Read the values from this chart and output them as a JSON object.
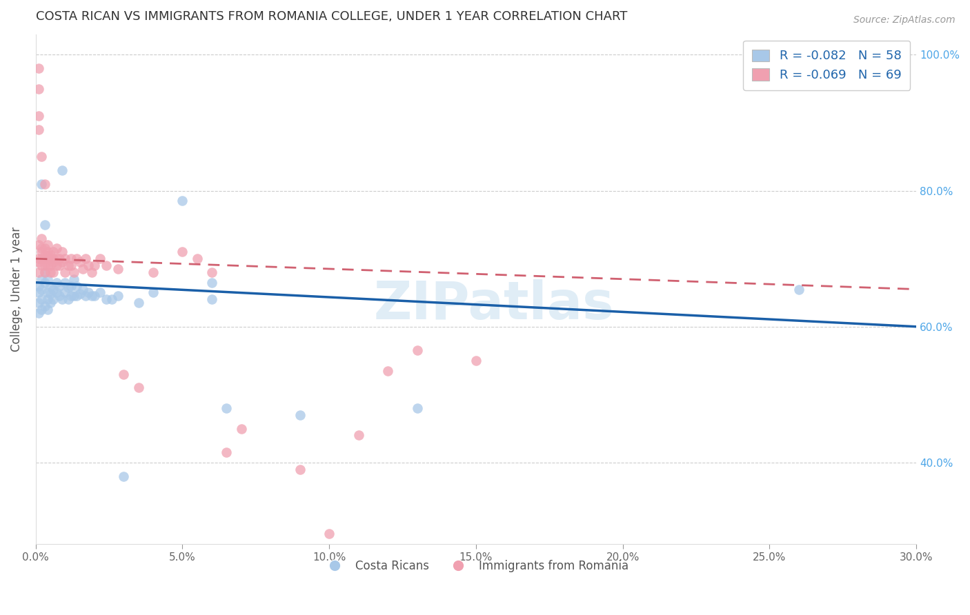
{
  "title": "COSTA RICAN VS IMMIGRANTS FROM ROMANIA COLLEGE, UNDER 1 YEAR CORRELATION CHART",
  "source": "Source: ZipAtlas.com",
  "ylabel": "College, Under 1 year",
  "x_min": 0.0,
  "x_max": 0.3,
  "y_min": 0.28,
  "y_max": 1.03,
  "x_ticks": [
    0.0,
    0.05,
    0.1,
    0.15,
    0.2,
    0.25,
    0.3
  ],
  "x_tick_labels": [
    "0.0%",
    "5.0%",
    "10.0%",
    "15.0%",
    "20.0%",
    "25.0%",
    "30.0%"
  ],
  "y_ticks": [
    0.4,
    0.6,
    0.8,
    1.0
  ],
  "y_tick_labels": [
    "40.0%",
    "60.0%",
    "80.0%",
    "100.0%"
  ],
  "blue_color": "#a8c8e8",
  "pink_color": "#f0a0b0",
  "blue_line_color": "#1a5fa8",
  "pink_line_color": "#d06070",
  "legend_r_blue": "-0.082",
  "legend_n_blue": "58",
  "legend_r_pink": "-0.069",
  "legend_n_pink": "69",
  "label_blue": "Costa Ricans",
  "label_pink": "Immigrants from Romania",
  "watermark": "ZIPatlas",
  "blue_points": [
    [
      0.001,
      0.635
    ],
    [
      0.001,
      0.65
    ],
    [
      0.001,
      0.62
    ],
    [
      0.001,
      0.66
    ],
    [
      0.002,
      0.64
    ],
    [
      0.002,
      0.67
    ],
    [
      0.002,
      0.625
    ],
    [
      0.002,
      0.655
    ],
    [
      0.002,
      0.81
    ],
    [
      0.003,
      0.63
    ],
    [
      0.003,
      0.665
    ],
    [
      0.003,
      0.68
    ],
    [
      0.003,
      0.75
    ],
    [
      0.004,
      0.625
    ],
    [
      0.004,
      0.65
    ],
    [
      0.004,
      0.67
    ],
    [
      0.004,
      0.64
    ],
    [
      0.005,
      0.635
    ],
    [
      0.005,
      0.66
    ],
    [
      0.005,
      0.648
    ],
    [
      0.006,
      0.64
    ],
    [
      0.006,
      0.655
    ],
    [
      0.007,
      0.65
    ],
    [
      0.007,
      0.665
    ],
    [
      0.008,
      0.645
    ],
    [
      0.008,
      0.66
    ],
    [
      0.009,
      0.64
    ],
    [
      0.009,
      0.83
    ],
    [
      0.01,
      0.65
    ],
    [
      0.01,
      0.665
    ],
    [
      0.011,
      0.64
    ],
    [
      0.011,
      0.658
    ],
    [
      0.012,
      0.645
    ],
    [
      0.012,
      0.66
    ],
    [
      0.013,
      0.645
    ],
    [
      0.013,
      0.67
    ],
    [
      0.014,
      0.645
    ],
    [
      0.014,
      0.66
    ],
    [
      0.015,
      0.648
    ],
    [
      0.016,
      0.655
    ],
    [
      0.017,
      0.645
    ],
    [
      0.018,
      0.65
    ],
    [
      0.019,
      0.645
    ],
    [
      0.02,
      0.645
    ],
    [
      0.022,
      0.65
    ],
    [
      0.024,
      0.64
    ],
    [
      0.026,
      0.64
    ],
    [
      0.028,
      0.645
    ],
    [
      0.03,
      0.38
    ],
    [
      0.035,
      0.635
    ],
    [
      0.04,
      0.65
    ],
    [
      0.05,
      0.785
    ],
    [
      0.06,
      0.665
    ],
    [
      0.06,
      0.64
    ],
    [
      0.065,
      0.48
    ],
    [
      0.09,
      0.47
    ],
    [
      0.13,
      0.48
    ],
    [
      0.26,
      0.655
    ]
  ],
  "pink_points": [
    [
      0.001,
      0.695
    ],
    [
      0.001,
      0.72
    ],
    [
      0.001,
      0.7
    ],
    [
      0.001,
      0.68
    ],
    [
      0.001,
      0.95
    ],
    [
      0.001,
      0.98
    ],
    [
      0.001,
      0.91
    ],
    [
      0.001,
      0.89
    ],
    [
      0.002,
      0.69
    ],
    [
      0.002,
      0.715
    ],
    [
      0.002,
      0.73
    ],
    [
      0.002,
      0.7
    ],
    [
      0.002,
      0.85
    ],
    [
      0.002,
      0.71
    ],
    [
      0.003,
      0.69
    ],
    [
      0.003,
      0.715
    ],
    [
      0.003,
      0.7
    ],
    [
      0.003,
      0.68
    ],
    [
      0.003,
      0.705
    ],
    [
      0.003,
      0.81
    ],
    [
      0.004,
      0.69
    ],
    [
      0.004,
      0.71
    ],
    [
      0.004,
      0.7
    ],
    [
      0.004,
      0.72
    ],
    [
      0.005,
      0.69
    ],
    [
      0.005,
      0.705
    ],
    [
      0.005,
      0.68
    ],
    [
      0.005,
      0.7
    ],
    [
      0.006,
      0.695
    ],
    [
      0.006,
      0.71
    ],
    [
      0.006,
      0.68
    ],
    [
      0.006,
      0.7
    ],
    [
      0.007,
      0.69
    ],
    [
      0.007,
      0.7
    ],
    [
      0.007,
      0.715
    ],
    [
      0.008,
      0.69
    ],
    [
      0.008,
      0.7
    ],
    [
      0.009,
      0.695
    ],
    [
      0.009,
      0.71
    ],
    [
      0.01,
      0.68
    ],
    [
      0.01,
      0.7
    ],
    [
      0.011,
      0.69
    ],
    [
      0.012,
      0.69
    ],
    [
      0.012,
      0.7
    ],
    [
      0.013,
      0.68
    ],
    [
      0.014,
      0.7
    ],
    [
      0.015,
      0.695
    ],
    [
      0.016,
      0.685
    ],
    [
      0.017,
      0.7
    ],
    [
      0.018,
      0.69
    ],
    [
      0.019,
      0.68
    ],
    [
      0.02,
      0.69
    ],
    [
      0.022,
      0.7
    ],
    [
      0.024,
      0.69
    ],
    [
      0.028,
      0.685
    ],
    [
      0.03,
      0.53
    ],
    [
      0.035,
      0.51
    ],
    [
      0.04,
      0.68
    ],
    [
      0.05,
      0.71
    ],
    [
      0.055,
      0.7
    ],
    [
      0.06,
      0.68
    ],
    [
      0.065,
      0.415
    ],
    [
      0.07,
      0.45
    ],
    [
      0.09,
      0.39
    ],
    [
      0.1,
      0.295
    ],
    [
      0.11,
      0.44
    ],
    [
      0.12,
      0.535
    ],
    [
      0.13,
      0.565
    ],
    [
      0.15,
      0.55
    ]
  ]
}
